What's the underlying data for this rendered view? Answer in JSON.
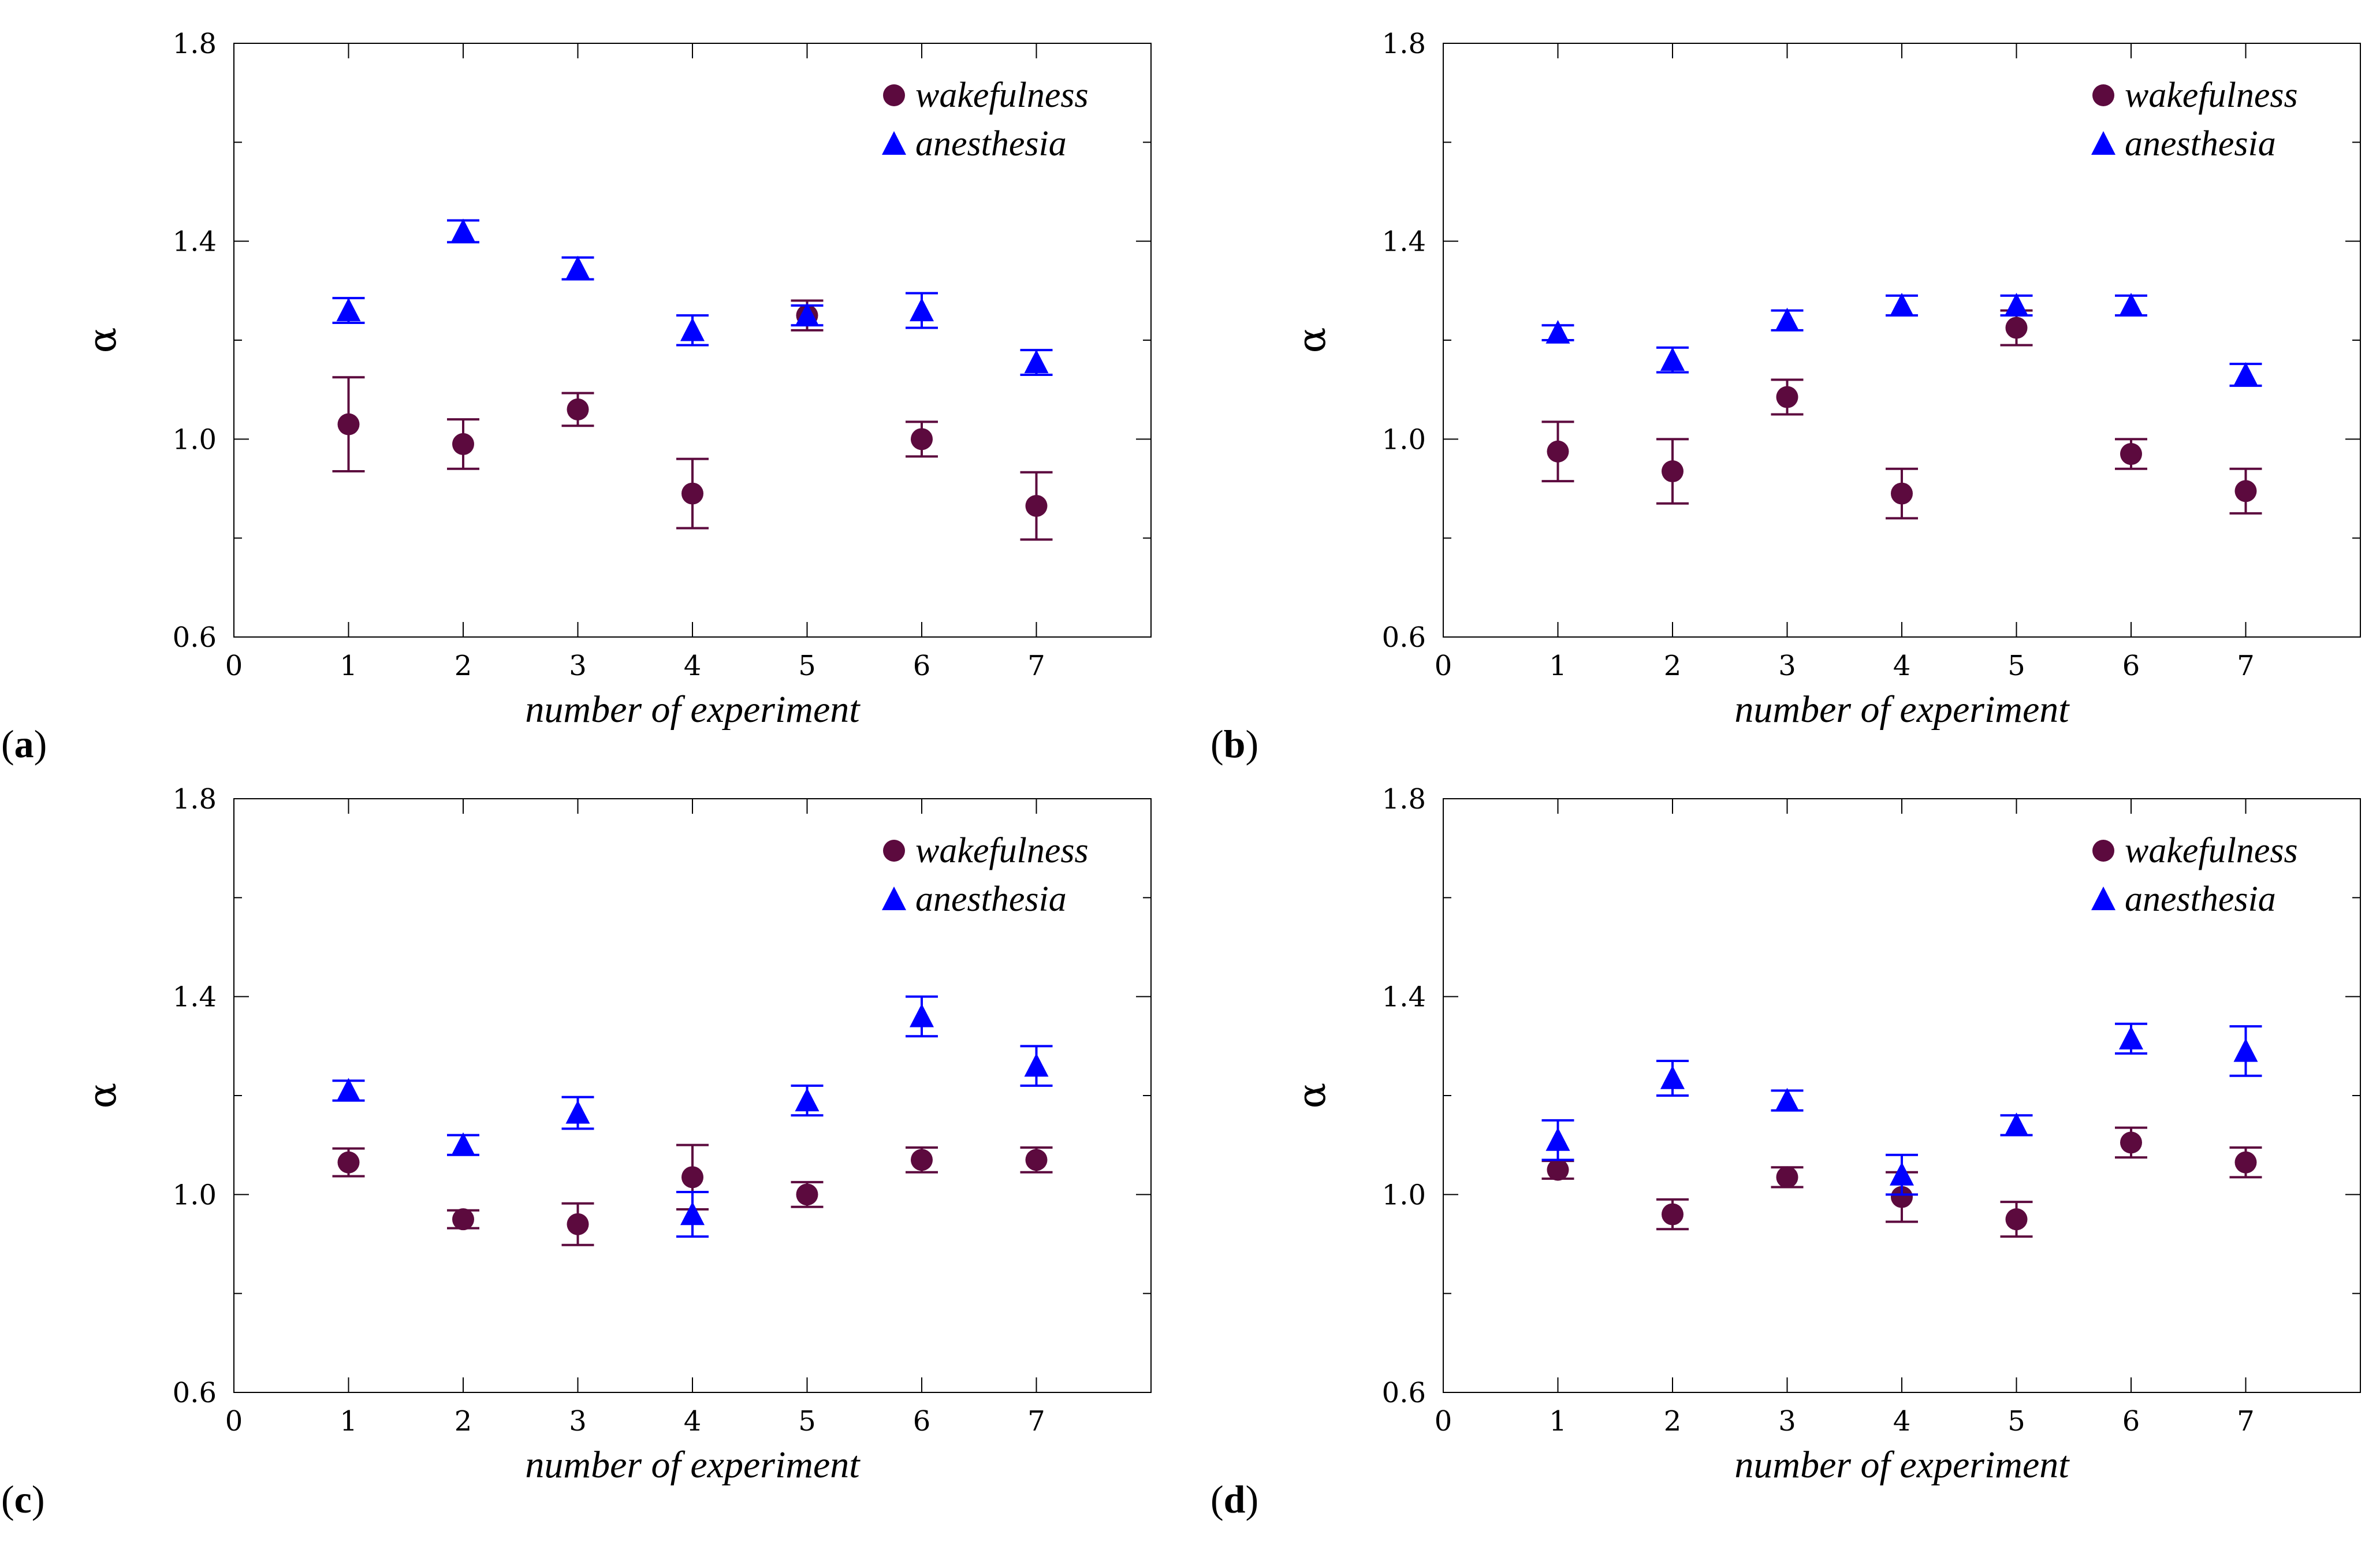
{
  "colors": {
    "wakefulness": "#5c0a3e",
    "anesthesia": "#0000ff"
  },
  "chart_data": [
    {
      "type": "scatter",
      "panel_label": "a",
      "xlabel": "number of experiment",
      "ylabel": "α",
      "xlim": [
        0,
        8
      ],
      "ylim": [
        0.6,
        1.8
      ],
      "xticks": [
        "0",
        "1",
        "2",
        "3",
        "4",
        "5",
        "6",
        "7"
      ],
      "yticks": [
        "0.6",
        "1.0",
        "1.4",
        "1.8"
      ],
      "legend_position": "top-right",
      "series": [
        {
          "name": "wakefulness",
          "marker": "circle",
          "x": [
            1,
            2,
            3,
            4,
            5,
            6,
            7
          ],
          "y": [
            1.03,
            0.99,
            1.06,
            0.89,
            1.25,
            1.0,
            0.865
          ],
          "err": [
            0.095,
            0.05,
            0.033,
            0.07,
            0.03,
            0.035,
            0.068
          ]
        },
        {
          "name": "anesthesia",
          "marker": "triangle",
          "x": [
            1,
            2,
            3,
            4,
            5,
            6,
            7
          ],
          "y": [
            1.26,
            1.42,
            1.345,
            1.22,
            1.25,
            1.26,
            1.155
          ],
          "err": [
            0.025,
            0.022,
            0.022,
            0.03,
            0.02,
            0.035,
            0.025
          ]
        }
      ]
    },
    {
      "type": "scatter",
      "panel_label": "b",
      "xlabel": "number of experiment",
      "ylabel": "α",
      "xlim": [
        0,
        8
      ],
      "ylim": [
        0.6,
        1.8
      ],
      "xticks": [
        "0",
        "1",
        "2",
        "3",
        "4",
        "5",
        "6",
        "7"
      ],
      "yticks": [
        "0.6",
        "1.0",
        "1.4",
        "1.8"
      ],
      "legend_position": "top-right",
      "series": [
        {
          "name": "wakefulness",
          "marker": "circle",
          "x": [
            1,
            2,
            3,
            4,
            5,
            6,
            7
          ],
          "y": [
            0.975,
            0.935,
            1.085,
            0.89,
            1.225,
            0.97,
            0.895
          ],
          "err": [
            0.06,
            0.065,
            0.035,
            0.05,
            0.035,
            0.03,
            0.045
          ]
        },
        {
          "name": "anesthesia",
          "marker": "triangle",
          "x": [
            1,
            2,
            3,
            4,
            5,
            6,
            7
          ],
          "y": [
            1.215,
            1.16,
            1.24,
            1.27,
            1.27,
            1.27,
            1.13
          ],
          "err": [
            0.015,
            0.025,
            0.02,
            0.02,
            0.02,
            0.02,
            0.022
          ]
        }
      ]
    },
    {
      "type": "scatter",
      "panel_label": "c",
      "xlabel": "number of experiment",
      "ylabel": "α",
      "xlim": [
        0,
        8
      ],
      "ylim": [
        0.6,
        1.8
      ],
      "xticks": [
        "0",
        "1",
        "2",
        "3",
        "4",
        "5",
        "6",
        "7"
      ],
      "yticks": [
        "0.6",
        "1.0",
        "1.4",
        "1.8"
      ],
      "legend_position": "top-right",
      "series": [
        {
          "name": "wakefulness",
          "marker": "circle",
          "x": [
            1,
            2,
            3,
            4,
            5,
            6,
            7
          ],
          "y": [
            1.065,
            0.95,
            0.94,
            1.035,
            1.0,
            1.07,
            1.07
          ],
          "err": [
            0.028,
            0.018,
            0.042,
            0.065,
            0.025,
            0.025,
            0.025
          ]
        },
        {
          "name": "anesthesia",
          "marker": "triangle",
          "x": [
            1,
            2,
            3,
            4,
            5,
            6,
            7
          ],
          "y": [
            1.21,
            1.1,
            1.165,
            0.96,
            1.19,
            1.36,
            1.26
          ],
          "err": [
            0.02,
            0.02,
            0.032,
            0.045,
            0.03,
            0.04,
            0.04
          ]
        }
      ]
    },
    {
      "type": "scatter",
      "panel_label": "d",
      "xlabel": "number of experiment",
      "ylabel": "α",
      "xlim": [
        0,
        8
      ],
      "ylim": [
        0.6,
        1.8
      ],
      "xticks": [
        "0",
        "1",
        "2",
        "3",
        "4",
        "5",
        "6",
        "7"
      ],
      "yticks": [
        "0.6",
        "1.0",
        "1.4",
        "1.8"
      ],
      "legend_position": "top-right",
      "series": [
        {
          "name": "wakefulness",
          "marker": "circle",
          "x": [
            1,
            2,
            3,
            4,
            5,
            6,
            7
          ],
          "y": [
            1.05,
            0.96,
            1.035,
            0.995,
            0.95,
            1.105,
            1.065
          ],
          "err": [
            0.018,
            0.03,
            0.02,
            0.05,
            0.035,
            0.03,
            0.03
          ]
        },
        {
          "name": "anesthesia",
          "marker": "triangle",
          "x": [
            1,
            2,
            3,
            4,
            5,
            6,
            7
          ],
          "y": [
            1.11,
            1.235,
            1.19,
            1.04,
            1.14,
            1.315,
            1.29
          ],
          "err": [
            0.04,
            0.035,
            0.02,
            0.04,
            0.02,
            0.03,
            0.05
          ]
        }
      ]
    }
  ]
}
